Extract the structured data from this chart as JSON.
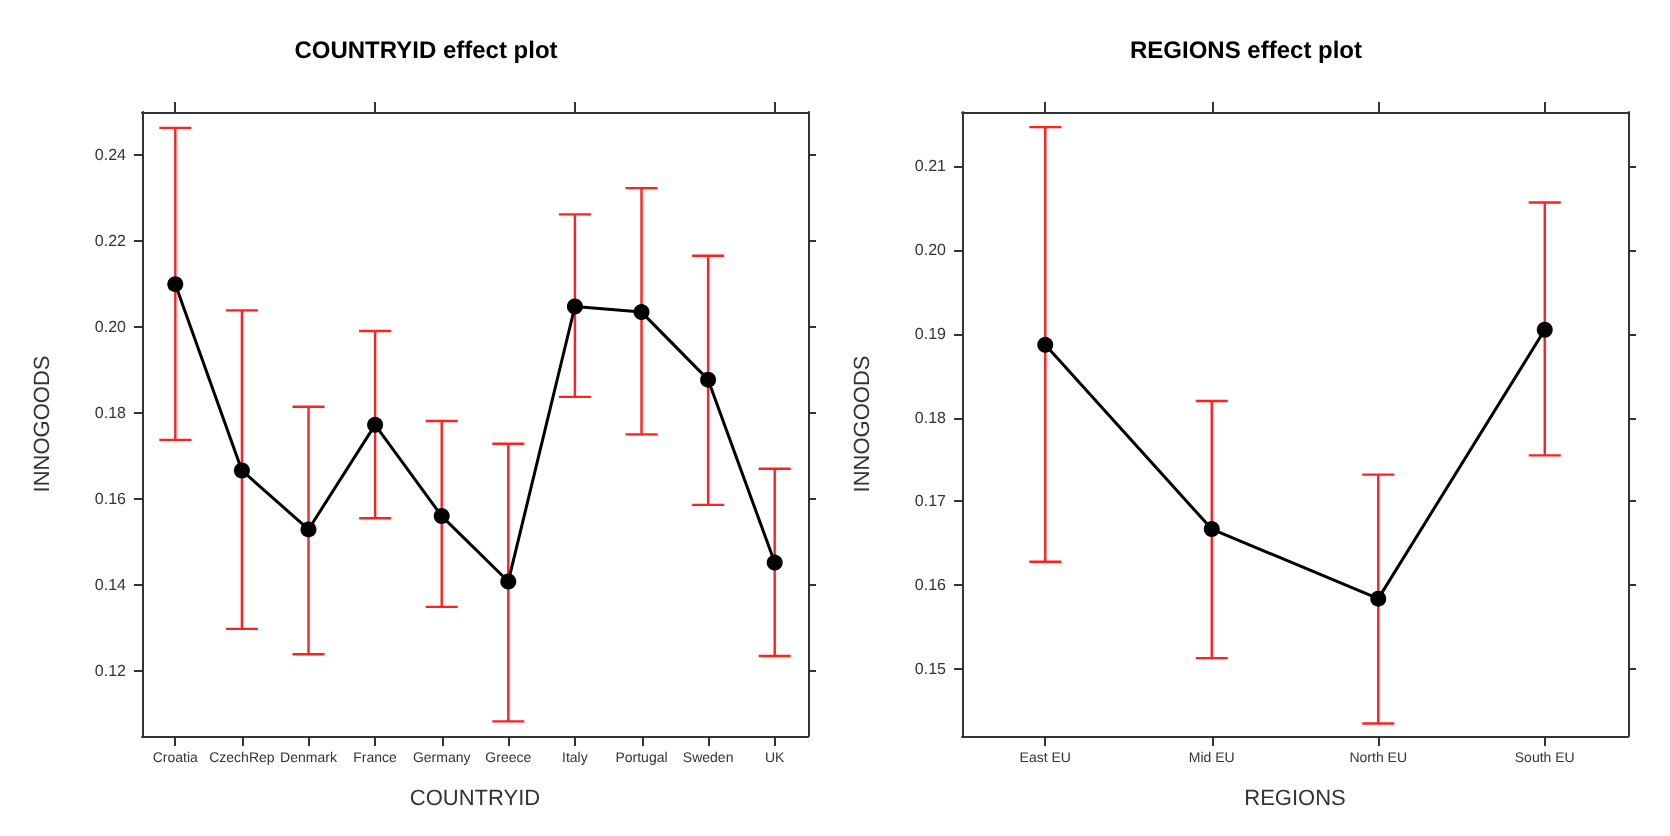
{
  "chart_data": [
    {
      "type": "line",
      "title": "COUNTRYID effect plot",
      "xlabel": "COUNTRYID",
      "ylabel": "INNOGOODS",
      "categories": [
        "Croatia",
        "CzechRep",
        "Denmark",
        "France",
        "Germany",
        "Greece",
        "Italy",
        "Portugal",
        "Sweden",
        "UK"
      ],
      "series": [
        {
          "color": "#000000",
          "values": [
            0.21,
            0.1667,
            0.153,
            0.1773,
            0.1561,
            0.1409,
            0.2048,
            0.2035,
            0.1878,
            0.1453
          ],
          "errors": [
            [
              0.1738,
              0.2463
            ],
            [
              0.1299,
              0.2039
            ],
            [
              0.124,
              0.1815
            ],
            [
              0.1556,
              0.1991
            ],
            [
              0.135,
              0.1782
            ],
            [
              0.1084,
              0.1729
            ],
            [
              0.1838,
              0.2262
            ],
            [
              0.1751,
              0.2323
            ],
            [
              0.1587,
              0.2166
            ],
            [
              0.1236,
              0.1671
            ]
          ]
        }
      ],
      "ylim": [
        0.105,
        0.25
      ],
      "yticks": [
        0.12,
        0.14,
        0.16,
        0.18,
        {
          "value": 0.2,
          "label": "0.20"
        },
        0.22,
        0.24
      ],
      "grid": false,
      "marker": "circle",
      "line_style": "solid"
    },
    {
      "type": "line",
      "title": "REGIONS effect plot",
      "xlabel": "REGIONS",
      "ylabel": "INNOGOODS",
      "categories": [
        "East EU",
        "Mid EU",
        "North EU",
        "South EU"
      ],
      "series": [
        {
          "color": "#000000",
          "values": [
            0.1887,
            0.1667,
            0.1584,
            0.1905
          ],
          "errors": [
            [
              0.1628,
              0.2147
            ],
            [
              0.1513,
              0.182
            ],
            [
              0.1435,
              0.1732
            ],
            [
              0.1755,
              0.2057
            ]
          ]
        }
      ],
      "ylim": [
        0.142,
        0.2165
      ],
      "yticks": [
        0.15,
        0.16,
        0.17,
        0.18,
        0.19,
        {
          "value": 0.2,
          "label": "0.20"
        },
        0.21
      ],
      "grid": false,
      "marker": "circle",
      "line_style": "solid"
    }
  ]
}
